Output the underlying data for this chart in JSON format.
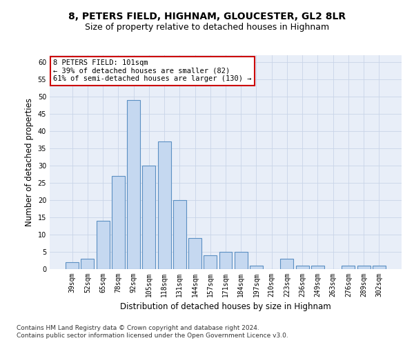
{
  "title": "8, PETERS FIELD, HIGHNAM, GLOUCESTER, GL2 8LR",
  "subtitle": "Size of property relative to detached houses in Highnam",
  "xlabel": "Distribution of detached houses by size in Highnam",
  "ylabel": "Number of detached properties",
  "categories": [
    "39sqm",
    "52sqm",
    "65sqm",
    "78sqm",
    "92sqm",
    "105sqm",
    "118sqm",
    "131sqm",
    "144sqm",
    "157sqm",
    "171sqm",
    "184sqm",
    "197sqm",
    "210sqm",
    "223sqm",
    "236sqm",
    "249sqm",
    "263sqm",
    "276sqm",
    "289sqm",
    "302sqm"
  ],
  "values": [
    2,
    3,
    14,
    27,
    49,
    30,
    37,
    20,
    9,
    4,
    5,
    5,
    1,
    0,
    3,
    1,
    1,
    0,
    1,
    1,
    1
  ],
  "bar_color": "#c5d8f0",
  "bar_edge_color": "#5a8fc2",
  "annotation_line1": "8 PETERS FIELD: 101sqm",
  "annotation_line2": "← 39% of detached houses are smaller (82)",
  "annotation_line3": "61% of semi-detached houses are larger (130) →",
  "annotation_box_color": "#ffffff",
  "annotation_box_edge_color": "#cc0000",
  "ylim": [
    0,
    62
  ],
  "yticks": [
    0,
    5,
    10,
    15,
    20,
    25,
    30,
    35,
    40,
    45,
    50,
    55,
    60
  ],
  "grid_color": "#c8d4e8",
  "background_color": "#e8eef8",
  "footer_line1": "Contains HM Land Registry data © Crown copyright and database right 2024.",
  "footer_line2": "Contains public sector information licensed under the Open Government Licence v3.0.",
  "title_fontsize": 10,
  "subtitle_fontsize": 9,
  "axis_label_fontsize": 8.5,
  "tick_fontsize": 7,
  "annotation_fontsize": 7.5,
  "footer_fontsize": 6.5
}
